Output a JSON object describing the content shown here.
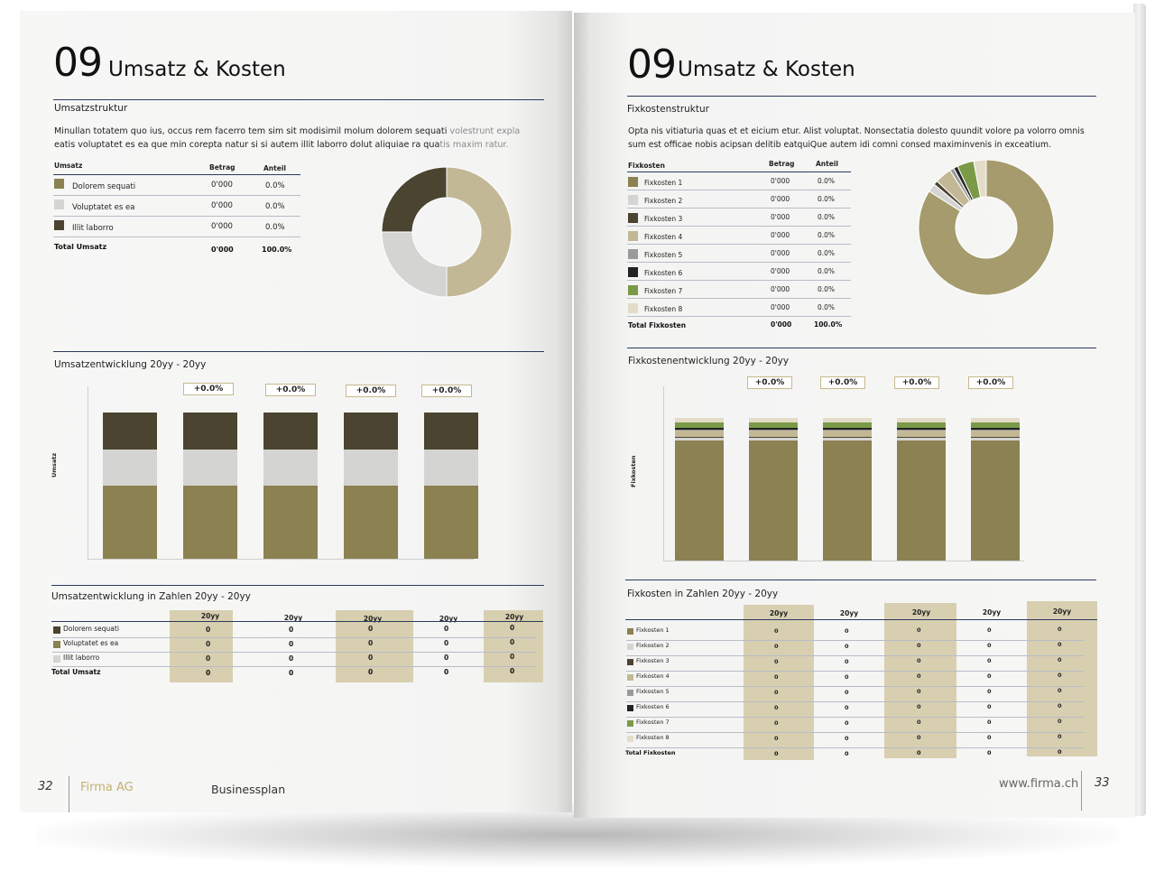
{
  "colors": {
    "olive": "#8b8151",
    "light_olive": "#c2b896",
    "dark": "#4a4430",
    "grey": "#d4d4d2",
    "navy_rule": "#2d3a5c",
    "table_highlight": "#d8cfb1",
    "green": "#7a9a48"
  },
  "left": {
    "number": "09",
    "title": "Umsatz & Kosten",
    "section1": "Umsatzstruktur",
    "paragraph_main": "Minullan totatem quo ius, occus rem facerro tem sim sit modisimil molum dolorem sequati",
    "paragraph_fade1": "volestrunt expla",
    "paragraph_line2": "eatis voluptatet es ea que min corepta natur si si autem illit laborro dolut aliquiae ra qua",
    "paragraph_fade2": "tis maxim ratur.",
    "table": {
      "headers": [
        "Umsatz",
        "Betrag",
        "Anteil"
      ],
      "rows": [
        {
          "label": "Dolorem sequati",
          "betrag": "0'000",
          "anteil": "0.0%",
          "color": "#8b8151"
        },
        {
          "label": "Voluptatet es ea",
          "betrag": "0'000",
          "anteil": "0.0%",
          "color": "#d4d4d2"
        },
        {
          "label": "Illit laborro",
          "betrag": "0'000",
          "anteil": "0.0%",
          "color": "#4a4430"
        }
      ],
      "total": {
        "label": "Total Umsatz",
        "betrag": "0'000",
        "anteil": "100.0%"
      }
    },
    "section2": "Umsatzentwicklung 20yy - 20yy",
    "chart_ylabel": "Umsatz",
    "pct_labels": [
      "+0.0%",
      "+0.0%",
      "+0.0%",
      "+0.0%"
    ],
    "section3": "Umsatzentwicklung in Zahlen 20yy - 20yy",
    "numbers_table": {
      "headers": [
        "20yy",
        "20yy",
        "20yy",
        "20yy",
        "20yy"
      ],
      "rows": [
        {
          "label": "Dolorem sequati",
          "color": "#4a4430",
          "values": [
            "0",
            "0",
            "0",
            "0",
            "0"
          ]
        },
        {
          "label": "Voluptatet es ea",
          "color": "#8b8151",
          "values": [
            "0",
            "0",
            "0",
            "0",
            "0"
          ]
        },
        {
          "label": "Illit laborro",
          "color": "#d4d4d2",
          "values": [
            "0",
            "0",
            "0",
            "0",
            "0"
          ]
        }
      ],
      "total": {
        "label": "Total Umsatz",
        "values": [
          "0",
          "0",
          "0",
          "0",
          "0"
        ]
      }
    },
    "footer": {
      "page": "32",
      "company": "Firma AG",
      "doc": "Businessplan"
    }
  },
  "right": {
    "number": "09",
    "title": "Umsatz & Kosten",
    "section1": "Fixkostenstruktur",
    "paragraph_line1": "Opta nis vitiaturia quas et et eicium etur. Alist voluptat. Nonsectatia dolesto quundit volore pa volorro omnis",
    "paragraph_line2": "sum est officae nobis acipsan delitib eatquiQue autem idi comni consed maximinvenis in exceatium.",
    "table": {
      "headers": [
        "Fixkosten",
        "Betrag",
        "Anteil"
      ],
      "rows": [
        {
          "label": "Fixkosten 1",
          "betrag": "0'000",
          "anteil": "0.0%",
          "color": "#8b8151"
        },
        {
          "label": "Fixkosten 2",
          "betrag": "0'000",
          "anteil": "0.0%",
          "color": "#d4d4d2"
        },
        {
          "label": "Fixkosten 3",
          "betrag": "0'000",
          "anteil": "0.0%",
          "color": "#4a4430"
        },
        {
          "label": "Fixkosten 4",
          "betrag": "0'000",
          "anteil": "0.0%",
          "color": "#c2b896"
        },
        {
          "label": "Fixkosten 5",
          "betrag": "0'000",
          "anteil": "0.0%",
          "color": "#9a9a9a"
        },
        {
          "label": "Fixkosten 6",
          "betrag": "0'000",
          "anteil": "0.0%",
          "color": "#222222"
        },
        {
          "label": "Fixkosten 7",
          "betrag": "0'000",
          "anteil": "0.0%",
          "color": "#7a9a48"
        },
        {
          "label": "Fixkosten 8",
          "betrag": "0'000",
          "anteil": "0.0%",
          "color": "#e3dcc8"
        }
      ],
      "total": {
        "label": "Total Fixkosten",
        "betrag": "0'000",
        "anteil": "100.0%"
      }
    },
    "section2": "Fixkostenentwicklung 20yy - 20yy",
    "chart_ylabel": "Fixkosten",
    "pct_labels": [
      "+0.0%",
      "+0.0%",
      "+0.0%",
      "+0.0%"
    ],
    "section3": "Fixkosten in Zahlen 20yy - 20yy",
    "numbers_table": {
      "headers": [
        "20yy",
        "20yy",
        "20yy",
        "20yy",
        "20yy"
      ],
      "rows": [
        {
          "label": "Fixkosten 1",
          "color": "#8b8151",
          "values": [
            "0",
            "0",
            "0",
            "0",
            "0"
          ]
        },
        {
          "label": "Fixkosten 2",
          "color": "#d4d4d2",
          "values": [
            "0",
            "0",
            "0",
            "0",
            "0"
          ]
        },
        {
          "label": "Fixkosten 3",
          "color": "#4a4430",
          "values": [
            "0",
            "0",
            "0",
            "0",
            "0"
          ]
        },
        {
          "label": "Fixkosten 4",
          "color": "#c2b896",
          "values": [
            "0",
            "0",
            "0",
            "0",
            "0"
          ]
        },
        {
          "label": "Fixkosten 5",
          "color": "#9a9a9a",
          "values": [
            "0",
            "0",
            "0",
            "0",
            "0"
          ]
        },
        {
          "label": "Fixkosten 6",
          "color": "#222222",
          "values": [
            "0",
            "0",
            "0",
            "0",
            "0"
          ]
        },
        {
          "label": "Fixkosten 7",
          "color": "#7a9a48",
          "values": [
            "0",
            "0",
            "0",
            "0",
            "0"
          ]
        },
        {
          "label": "Fixkosten 8",
          "color": "#e3dcc8",
          "values": [
            "0",
            "0",
            "0",
            "0",
            "0"
          ]
        }
      ],
      "total": {
        "label": "Total Fixkosten",
        "values": [
          "0",
          "0",
          "0",
          "0",
          "0"
        ]
      }
    },
    "footer": {
      "page": "33",
      "url": "www.firma.ch"
    }
  },
  "chart_data": [
    {
      "type": "pie",
      "categories": [
        "Dolorem sequati",
        "Voluptatet es ea",
        "Illit laborro"
      ],
      "values": [
        50,
        25,
        25
      ],
      "colors": [
        "#c2b896",
        "#d4d4d2",
        "#4a4430"
      ],
      "title": ""
    },
    {
      "type": "bar",
      "categories": [
        "",
        "",
        "",
        "",
        ""
      ],
      "ylabel": "Umsatz",
      "stacked": true,
      "series": [
        {
          "values": [
            50,
            50,
            50,
            50,
            50
          ],
          "color": "#8b8151"
        },
        {
          "values": [
            25,
            25,
            25,
            25,
            25
          ],
          "color": "#d4d4d2"
        },
        {
          "values": [
            25,
            25,
            25,
            25,
            25
          ],
          "color": "#4a4430"
        }
      ],
      "annotations": [
        "+0.0%",
        "+0.0%",
        "+0.0%",
        "+0.0%"
      ]
    },
    {
      "type": "pie",
      "categories": [
        "Fixkosten 1",
        "Fixkosten 2",
        "Fixkosten 3",
        "Fixkosten 4",
        "Fixkosten 5",
        "Fixkosten 6",
        "Fixkosten 7",
        "Fixkosten 8"
      ],
      "values": [
        84,
        2,
        1,
        4,
        1,
        1,
        4,
        3
      ],
      "colors": [
        "#a59b6c",
        "#d4d4d2",
        "#4a4430",
        "#c2b896",
        "#9a9a9a",
        "#222222",
        "#7a9a48",
        "#e3dcc8"
      ],
      "title": ""
    },
    {
      "type": "bar",
      "categories": [
        "",
        "",
        "",
        "",
        ""
      ],
      "ylabel": "Fixkosten",
      "stacked": true,
      "series": [
        {
          "values": [
            84,
            84,
            84,
            84,
            84
          ],
          "color": "#8b8151"
        },
        {
          "values": [
            2,
            2,
            2,
            2,
            2
          ],
          "color": "#d4d4d2"
        },
        {
          "values": [
            1,
            1,
            1,
            1,
            1
          ],
          "color": "#4a4430"
        },
        {
          "values": [
            4,
            4,
            4,
            4,
            4
          ],
          "color": "#c2b896"
        },
        {
          "values": [
            1,
            1,
            1,
            1,
            1
          ],
          "color": "#9a9a9a"
        },
        {
          "values": [
            1,
            1,
            1,
            1,
            1
          ],
          "color": "#222222"
        },
        {
          "values": [
            4,
            4,
            4,
            4,
            4
          ],
          "color": "#7a9a48"
        },
        {
          "values": [
            3,
            3,
            3,
            3,
            3
          ],
          "color": "#e3dcc8"
        }
      ],
      "annotations": [
        "+0.0%",
        "+0.0%",
        "+0.0%",
        "+0.0%"
      ]
    }
  ]
}
